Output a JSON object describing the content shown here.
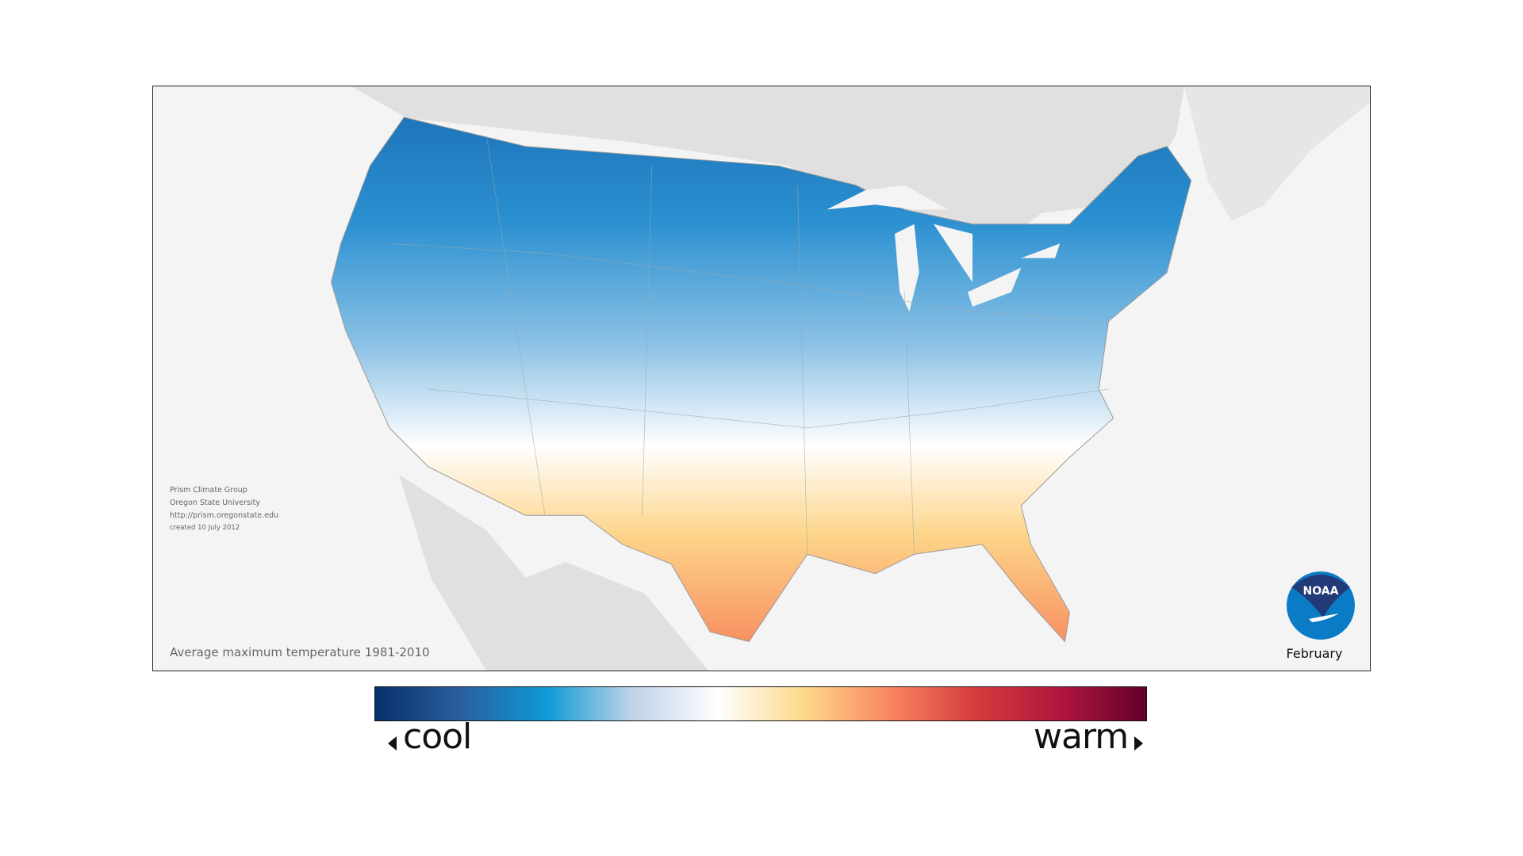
{
  "credits": {
    "line1": "Prism Climate Group",
    "line2": "Oregon State University",
    "line3": "http://prism.oregonstate.edu",
    "line4": "created 10 July 2012"
  },
  "title": "Average maximum temperature 1981-2010",
  "month": "February",
  "logo_text": "NOAA",
  "legend": {
    "cool_label": "cool",
    "warm_label": "warm",
    "colors": [
      "#06306a",
      "#2b5f9e",
      "#0d9ad6",
      "#bfd3e8",
      "#ffffff",
      "#fdd98a",
      "#f98660",
      "#d43c3c",
      "#b0163f",
      "#62002a"
    ]
  }
}
